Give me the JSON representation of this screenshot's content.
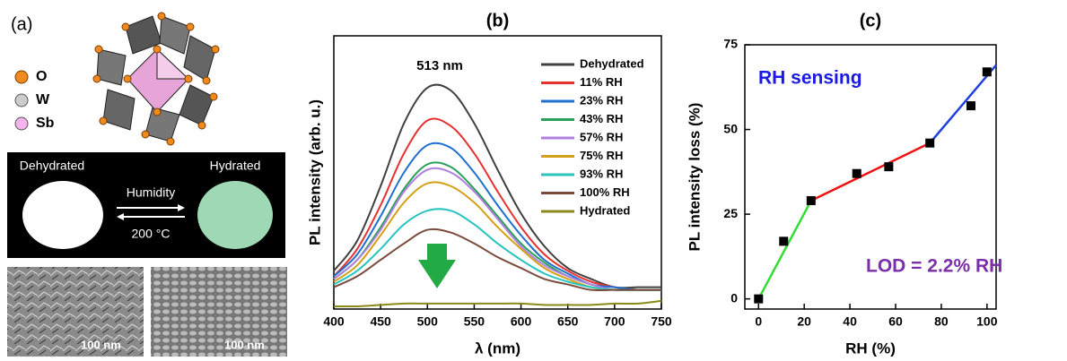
{
  "panel_a": {
    "label": "(a)",
    "legend": [
      "O",
      "W",
      "Sb"
    ],
    "photo": {
      "left": "Dehydrated",
      "right": "Hydrated",
      "arrow_top": "Humidity",
      "arrow_bottom": "200 °C"
    },
    "sem_scale": [
      "100 nm",
      "100 nm"
    ]
  },
  "chart_data": [
    {
      "type": "line",
      "panel_label": "(b)",
      "x_label": "λ (nm)",
      "y_label": "PL intensity (arb. u.)",
      "annotations": [
        "513 nm"
      ],
      "x": [
        400,
        425,
        450,
        475,
        500,
        525,
        550,
        575,
        600,
        625,
        650,
        675,
        700,
        725,
        750
      ],
      "xlim": [
        400,
        750
      ],
      "xticks": [
        400,
        450,
        500,
        550,
        600,
        650,
        700,
        750
      ],
      "ylim": [
        0,
        1
      ],
      "series": [
        {
          "name": "Dehydrated",
          "color": "#404040",
          "values": [
            0.14,
            0.25,
            0.45,
            0.68,
            0.81,
            0.8,
            0.68,
            0.51,
            0.35,
            0.23,
            0.15,
            0.11,
            0.08,
            0.08,
            0.08
          ]
        },
        {
          "name": "11% RH",
          "color": "#e8312f",
          "values": [
            0.12,
            0.22,
            0.38,
            0.57,
            0.69,
            0.67,
            0.57,
            0.43,
            0.3,
            0.2,
            0.14,
            0.1,
            0.08,
            0.07,
            0.07
          ]
        },
        {
          "name": "23% RH",
          "color": "#1f6fd0",
          "values": [
            0.12,
            0.2,
            0.34,
            0.5,
            0.6,
            0.59,
            0.5,
            0.38,
            0.27,
            0.18,
            0.13,
            0.09,
            0.08,
            0.07,
            0.07
          ]
        },
        {
          "name": "43% RH",
          "color": "#2aa05a",
          "values": [
            0.11,
            0.18,
            0.3,
            0.44,
            0.53,
            0.52,
            0.44,
            0.34,
            0.24,
            0.17,
            0.12,
            0.09,
            0.07,
            0.07,
            0.07
          ]
        },
        {
          "name": "57% RH",
          "color": "#b07fe0",
          "values": [
            0.11,
            0.18,
            0.29,
            0.43,
            0.51,
            0.5,
            0.43,
            0.33,
            0.23,
            0.16,
            0.12,
            0.09,
            0.07,
            0.07,
            0.07
          ]
        },
        {
          "name": "75% RH",
          "color": "#d4a017",
          "values": [
            0.1,
            0.16,
            0.27,
            0.39,
            0.46,
            0.45,
            0.39,
            0.3,
            0.22,
            0.15,
            0.11,
            0.08,
            0.07,
            0.07,
            0.07
          ]
        },
        {
          "name": "93% RH",
          "color": "#29c4c0",
          "values": [
            0.09,
            0.14,
            0.22,
            0.31,
            0.36,
            0.36,
            0.31,
            0.24,
            0.18,
            0.13,
            0.1,
            0.08,
            0.07,
            0.07,
            0.07
          ]
        },
        {
          "name": "100% RH",
          "color": "#7a4a3a",
          "values": [
            0.08,
            0.12,
            0.18,
            0.24,
            0.29,
            0.28,
            0.24,
            0.19,
            0.15,
            0.11,
            0.09,
            0.07,
            0.07,
            0.07,
            0.07
          ]
        },
        {
          "name": "Hydrated",
          "color": "#8a8a1a",
          "values": [
            0.01,
            0.01,
            0.015,
            0.02,
            0.02,
            0.02,
            0.02,
            0.02,
            0.02,
            0.015,
            0.015,
            0.015,
            0.02,
            0.02,
            0.03
          ]
        }
      ]
    },
    {
      "type": "scatter",
      "panel_label": "(c)",
      "x_label": "RH (%)",
      "y_label": "PL intensity loss (%)",
      "annotations": [
        "RH sensing",
        "LOD = 2.2% RH"
      ],
      "annotation_colors": [
        "#1a1ae6",
        "#7b2fa8"
      ],
      "x": [
        0,
        11,
        23,
        43,
        57,
        75,
        93,
        100
      ],
      "xlim": [
        -6,
        104
      ],
      "xticks": [
        0,
        20,
        40,
        60,
        80,
        100
      ],
      "ylim": [
        -3,
        75
      ],
      "yticks": [
        0,
        25,
        50,
        75
      ],
      "series": [
        {
          "color": "#000000",
          "values": [
            0,
            17,
            29,
            37,
            39,
            46,
            57,
            67
          ]
        }
      ],
      "fits": [
        {
          "color": "#33dd33",
          "x": [
            0,
            23
          ],
          "values": [
            0,
            29
          ]
        },
        {
          "color": "#ee1111",
          "x": [
            23,
            75
          ],
          "values": [
            29,
            46
          ]
        },
        {
          "color": "#1f3fe0",
          "x": [
            75,
            104
          ],
          "values": [
            46,
            69
          ]
        }
      ]
    }
  ]
}
